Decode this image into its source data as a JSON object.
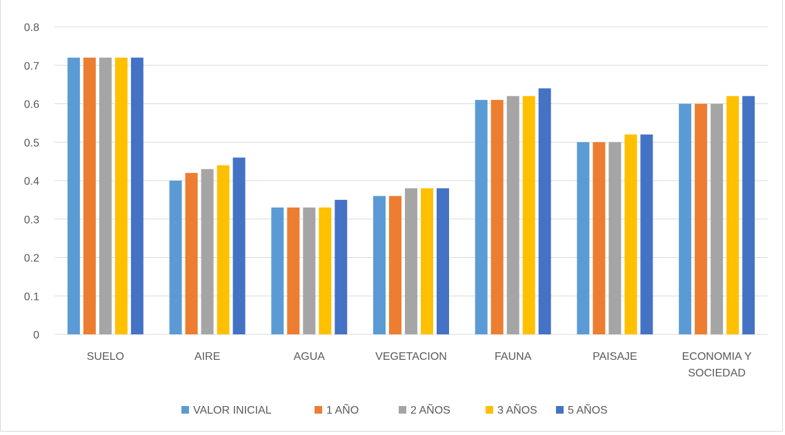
{
  "chart_data": {
    "type": "bar",
    "title": "",
    "xlabel": "",
    "ylabel": "",
    "categories": [
      [
        "SUELO"
      ],
      [
        "AIRE"
      ],
      [
        "AGUA"
      ],
      [
        "VEGETACION"
      ],
      [
        "FAUNA"
      ],
      [
        "PAISAJE"
      ],
      [
        "ECONOMIA Y",
        "SOCIEDAD"
      ]
    ],
    "ylim": [
      0,
      0.8
    ],
    "yticks": [
      "0",
      "0.1",
      "0.2",
      "0.3",
      "0.4",
      "0.5",
      "0.6",
      "0.7",
      "0.8"
    ],
    "grid": true,
    "legend_position": "bottom",
    "series": [
      {
        "name": "VALOR INICIAL",
        "color": "#5b9bd5",
        "values": [
          0.72,
          0.4,
          0.33,
          0.36,
          0.61,
          0.5,
          0.6
        ]
      },
      {
        "name": "1 AÑO",
        "color": "#ed7d31",
        "values": [
          0.72,
          0.42,
          0.33,
          0.36,
          0.61,
          0.5,
          0.6
        ]
      },
      {
        "name": "2 AÑOS",
        "color": "#a5a5a5",
        "values": [
          0.72,
          0.43,
          0.33,
          0.38,
          0.62,
          0.5,
          0.6
        ]
      },
      {
        "name": "3 AÑOS",
        "color": "#ffc000",
        "values": [
          0.72,
          0.44,
          0.33,
          0.38,
          0.62,
          0.52,
          0.62
        ]
      },
      {
        "name": "5 AÑOS",
        "color": "#4472c4",
        "values": [
          0.72,
          0.46,
          0.35,
          0.38,
          0.64,
          0.52,
          0.62
        ]
      }
    ]
  }
}
